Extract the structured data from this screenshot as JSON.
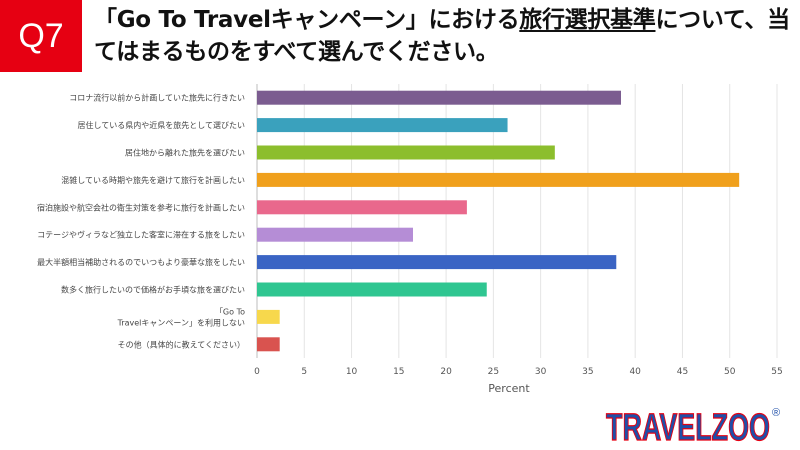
{
  "header": {
    "question_no": "Q7",
    "title_pre": "「Go To Travelキャンペーン」における",
    "title_underlined": "旅行選択基準",
    "title_post": "について、当てはまるものをすべて選んでください。"
  },
  "logo": {
    "text": "TRAVELZOO",
    "reg_mark": "®",
    "colors": [
      "#1f4fa8",
      "#e60012"
    ]
  },
  "chart_data": {
    "type": "bar",
    "orientation": "horizontal",
    "xlabel": "Percent",
    "xlim": [
      0,
      55
    ],
    "xticks": [
      "0",
      "5",
      "10",
      "15",
      "20",
      "25",
      "30",
      "35",
      "40",
      "45",
      "50",
      "55"
    ],
    "grid": true,
    "categories": [
      "コロナ流行以前から計画していた旅先に行きたい",
      "居住している県内や近県を旅先として選びたい",
      "居住地から離れた旅先を選びたい",
      "混雑している時期や旅先を避けて旅行を計画したい",
      "宿泊施設や航空会社の衛生対策を参考に旅行を計画したい",
      "コテージやヴィラなど独立した客室に滞在する旅をしたい",
      "最大半額相当補助されるのでいつもより豪華な旅をしたい",
      "数多く旅行したいので価格がお手頃な旅を選びたい",
      "「Go To\nTravelキャンペーン」を利用しない",
      "その他（具体的に教えてください）"
    ],
    "values": [
      38.5,
      26.5,
      31.5,
      51.0,
      22.2,
      16.5,
      38.0,
      24.3,
      2.4,
      2.4
    ],
    "colors": [
      "#7b5c90",
      "#3aa1bd",
      "#8cbe2d",
      "#f0a01c",
      "#e9688c",
      "#b58dd6",
      "#3a64c4",
      "#2fc691",
      "#f7d84c",
      "#d9534f"
    ]
  }
}
